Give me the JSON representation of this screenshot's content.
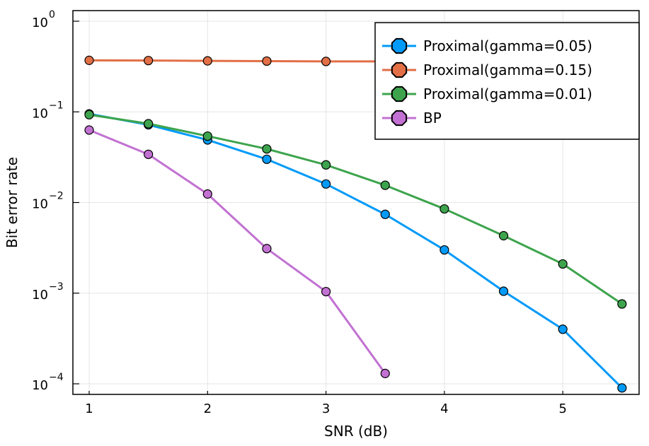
{
  "chart_data": {
    "type": "line",
    "title": "",
    "xlabel": "SNR (dB)",
    "ylabel": "Bit error rate",
    "xlim": [
      0.86,
      5.56
    ],
    "ylim": [
      7.5e-05,
      1.3
    ],
    "yscale": "log",
    "grid": true,
    "legend_position": "top-right",
    "x_ticks": [
      1,
      2,
      3,
      4,
      5
    ],
    "x_tick_labels": [
      "1",
      "2",
      "3",
      "4",
      "5"
    ],
    "y_ticks": [
      0.0001,
      0.001,
      0.01,
      0.1,
      1
    ],
    "y_tick_exponents": [
      "−4",
      "−3",
      "−2",
      "−1",
      "0"
    ],
    "y_tick_base": "10",
    "series": [
      {
        "name": "Proximal(gamma=0.05)",
        "color": "#009af9",
        "x": [
          1,
          1.5,
          2,
          2.5,
          3,
          3.5,
          4,
          4.5,
          5,
          5.5
        ],
        "y": [
          0.095,
          0.072,
          0.049,
          0.03,
          0.016,
          0.0074,
          0.003,
          0.00105,
          0.0004,
          9e-05
        ]
      },
      {
        "name": "Proximal(gamma=0.15)",
        "color": "#e26f46",
        "x": [
          1,
          1.5,
          2,
          2.5,
          3,
          3.5,
          4,
          4.5,
          5,
          5.5
        ],
        "y": [
          0.37,
          0.368,
          0.365,
          0.363,
          0.36,
          0.36,
          0.36,
          0.36,
          0.365,
          0.38
        ]
      },
      {
        "name": "Proximal(gamma=0.01)",
        "color": "#3da44d",
        "x": [
          1,
          1.5,
          2,
          2.5,
          3,
          3.5,
          4,
          4.5,
          5,
          5.5
        ],
        "y": [
          0.093,
          0.074,
          0.054,
          0.039,
          0.026,
          0.0155,
          0.0085,
          0.0043,
          0.0021,
          0.00076
        ]
      },
      {
        "name": "BP",
        "color": "#c271d2",
        "x": [
          1,
          1.5,
          2,
          2.5,
          3,
          3.5
        ],
        "y": [
          0.063,
          0.034,
          0.0124,
          0.0031,
          0.00104,
          0.00013
        ]
      }
    ]
  }
}
